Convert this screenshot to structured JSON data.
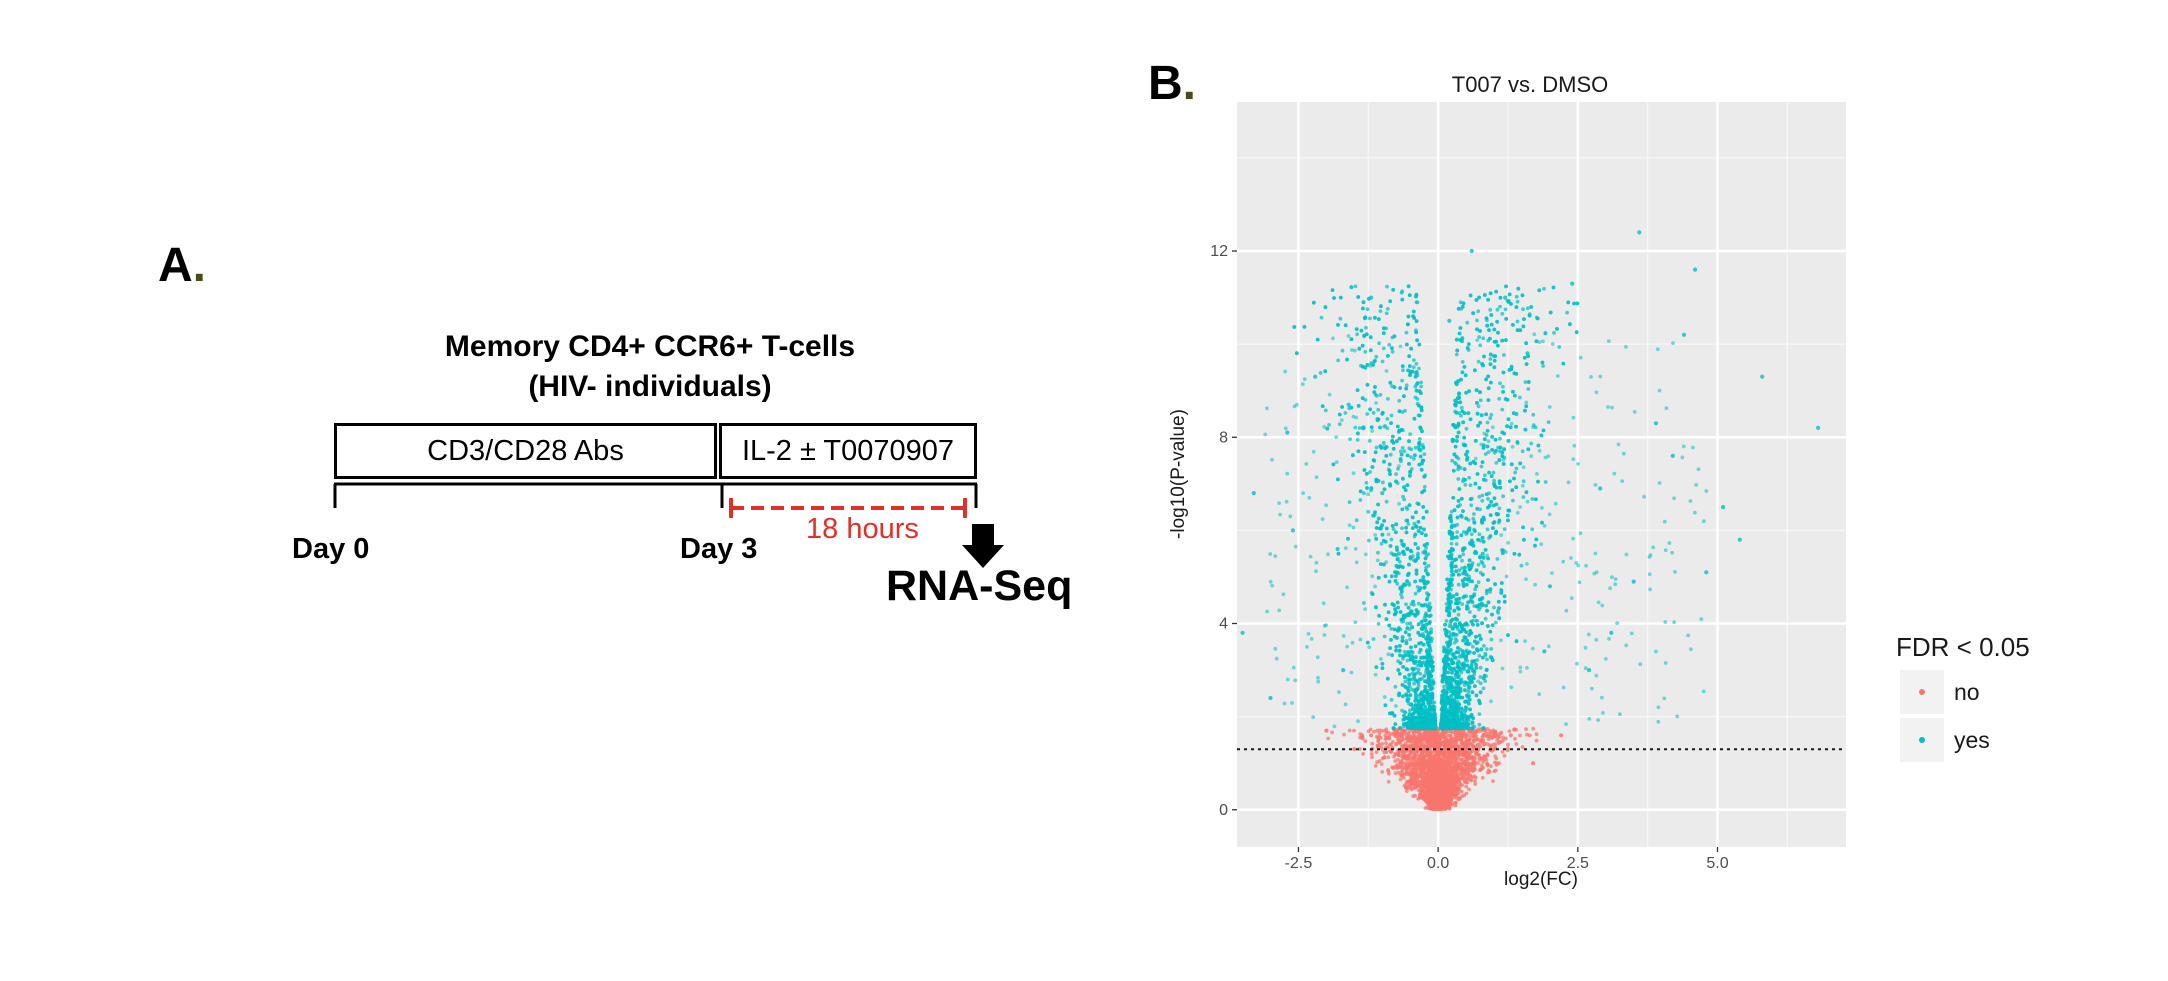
{
  "panel_a": {
    "letter": "A",
    "dot": ".",
    "title_line1": "Memory CD4+ CCR6+ T-cells",
    "title_line2": "(HIV- individuals)",
    "box1_label": "CD3/CD28 Abs",
    "box2_label": "IL-2 ± T0070907",
    "day0_label": "Day 0",
    "day3_label": "Day 3",
    "duration_label": "18 hours",
    "endpoint_label": "RNA-Seq",
    "colors": {
      "duration": "#e0302a",
      "lines": "#000000"
    }
  },
  "panel_b": {
    "letter": "B",
    "dot": "."
  },
  "chart_data": {
    "type": "scatter",
    "title": "T007 vs. DMSO",
    "xlabel": "log2(FC)",
    "ylabel": "-log10(P-value)",
    "xlim": [
      -3.6,
      7.3
    ],
    "ylim": [
      -0.8,
      15.2
    ],
    "xticks": [
      -2.5,
      0.0,
      2.5,
      5.0
    ],
    "xtick_labels": [
      "-2.5",
      "0.0",
      "2.5",
      "5.0"
    ],
    "yticks": [
      0,
      4,
      8,
      12
    ],
    "ytick_labels": [
      "0",
      "4",
      "8",
      "12"
    ],
    "grid": true,
    "threshold_line": {
      "y": 1.3,
      "style": "dotted"
    },
    "fdr_cutoff_neglog10p": 1.75,
    "legend": {
      "title": "FDR < 0.05",
      "position": "right",
      "entries": [
        {
          "label": "no",
          "color": "#f8766d"
        },
        {
          "label": "yes",
          "color": "#00bfc4"
        }
      ]
    },
    "series": [
      {
        "name": "no",
        "color": "#f8766d",
        "description_points": "dense cloud of non-significant genes, -log10(P) 0 to 1.75, |log2FC| up to ~2.3",
        "points": [
          [
            0,
            0.05
          ],
          [
            -0.2,
            0.5
          ],
          [
            0.2,
            0.5
          ],
          [
            -0.5,
            1.2
          ],
          [
            0.5,
            1.2
          ],
          [
            -1.2,
            1.6
          ],
          [
            1.3,
            1.6
          ],
          [
            -2.0,
            1.7
          ],
          [
            2.2,
            1.6
          ],
          [
            0.8,
            0.9
          ],
          [
            -0.8,
            0.9
          ],
          [
            1.7,
            1.0
          ],
          [
            -1.5,
            1.3
          ]
        ]
      },
      {
        "name": "yes",
        "color": "#00bfc4",
        "description_points": "significant genes above -log10(P)=1.75 forming a V-shaped volcano; sparse outliers",
        "points": [
          [
            -0.3,
            2.5
          ],
          [
            0.3,
            2.5
          ],
          [
            -0.5,
            4.0
          ],
          [
            0.5,
            4.0
          ],
          [
            -0.7,
            5.5
          ],
          [
            0.8,
            5.5
          ],
          [
            1.0,
            7.0
          ],
          [
            -1.0,
            6.8
          ],
          [
            1.4,
            8.5
          ],
          [
            1.6,
            9.8
          ],
          [
            1.2,
            11.0
          ],
          [
            0.2,
            10.5
          ],
          [
            -1.2,
            11.0
          ],
          [
            3.6,
            12.4
          ],
          [
            4.6,
            11.6
          ],
          [
            2.4,
            11.3
          ],
          [
            0.6,
            12.0
          ],
          [
            -2.2,
            9.3
          ],
          [
            -2.7,
            8.1
          ],
          [
            -3.3,
            6.8
          ],
          [
            -3.5,
            3.8
          ],
          [
            -3.0,
            2.4
          ],
          [
            5.8,
            9.3
          ],
          [
            6.8,
            8.2
          ],
          [
            5.1,
            6.5
          ],
          [
            5.4,
            5.8
          ],
          [
            4.8,
            5.1
          ],
          [
            3.1,
            3.8
          ],
          [
            2.7,
            3.0
          ],
          [
            3.5,
            4.9
          ],
          [
            4.2,
            7.6
          ],
          [
            4.4,
            10.2
          ],
          [
            -1.8,
            5.6
          ],
          [
            2.0,
            4.8
          ],
          [
            2.9,
            6.9
          ],
          [
            3.9,
            8.3
          ],
          [
            -2.6,
            6.0
          ],
          [
            -1.6,
            8.7
          ],
          [
            1.9,
            3.4
          ],
          [
            -1.7,
            3.0
          ]
        ]
      }
    ]
  }
}
